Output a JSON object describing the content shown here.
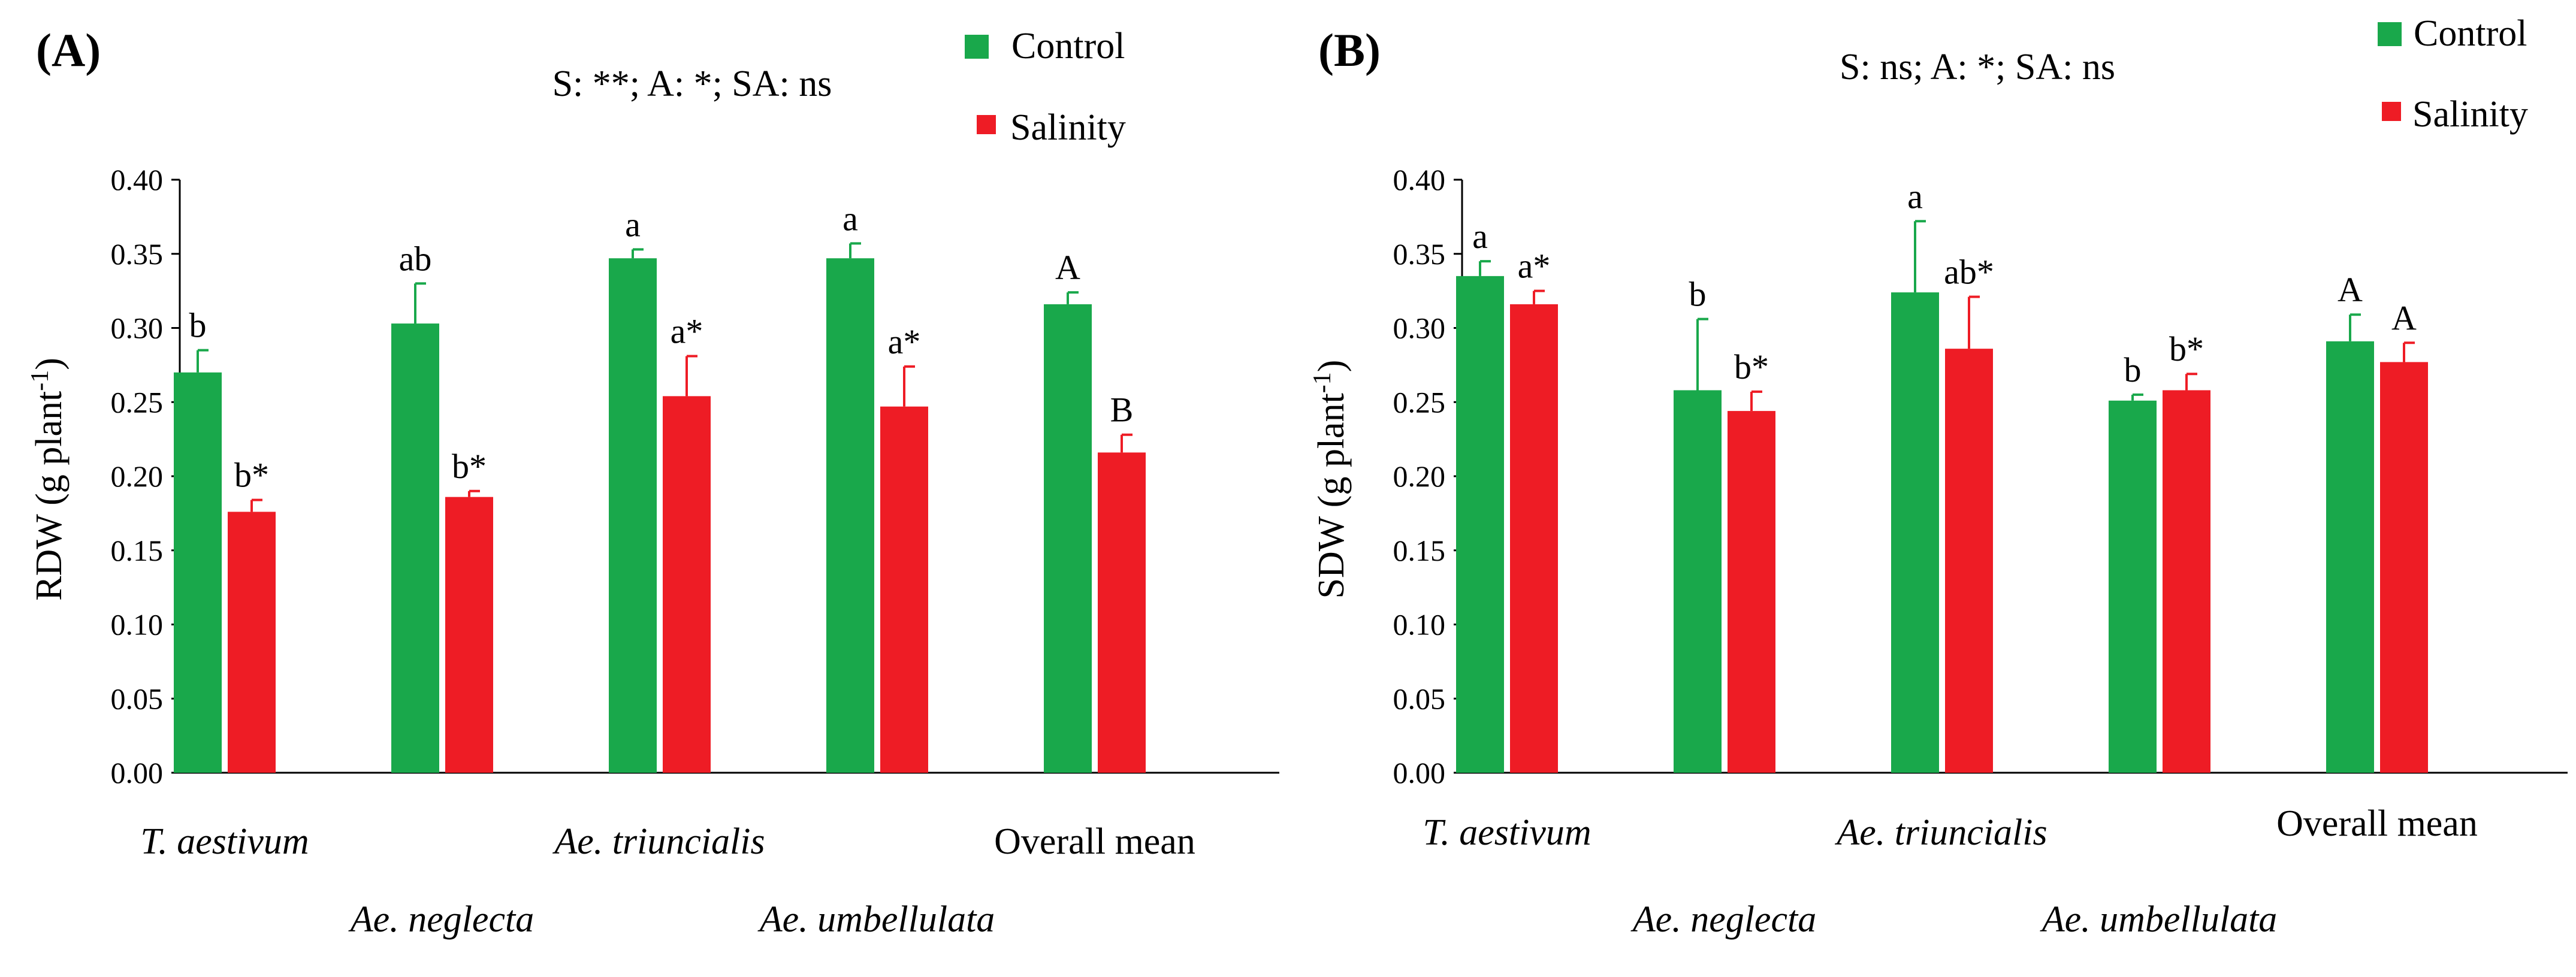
{
  "colors": {
    "control": "#19A84B",
    "salinity": "#EE1C25",
    "axis": "#000000",
    "text": "#000000"
  },
  "chart_data": [
    {
      "type": "bar",
      "panel_label": "(A)",
      "title": "S: **; A: *; SA: ns",
      "ylabel": "RDW",
      "ylabel_unit": "(g plant",
      "ylabel_exp": "-1",
      "ylabel_close": ")",
      "ylim": [
        0,
        0.4
      ],
      "yticks": [
        "0.00",
        "0.05",
        "0.10",
        "0.15",
        "0.20",
        "0.25",
        "0.30",
        "0.35",
        "0.40"
      ],
      "categories": [
        "T. aestivum",
        "Ae. neglecta",
        "Ae. triuncialis",
        "Ae. umbellulata",
        "Overall mean"
      ],
      "category_italic": [
        true,
        true,
        true,
        true,
        false
      ],
      "legend": [
        "Control",
        "Salinity"
      ],
      "series": [
        {
          "name": "Control",
          "values": [
            0.27,
            0.303,
            0.347,
            0.347,
            0.316
          ],
          "errors": [
            0.015,
            0.027,
            0.006,
            0.01,
            0.008
          ],
          "labels": [
            "b",
            "ab",
            "a",
            "a",
            "A"
          ]
        },
        {
          "name": "Salinity",
          "values": [
            0.176,
            0.186,
            0.254,
            0.247,
            0.216
          ],
          "errors": [
            0.008,
            0.004,
            0.027,
            0.027,
            0.012
          ],
          "labels": [
            "b*",
            "b*",
            "a*",
            "a*",
            "B"
          ]
        }
      ]
    },
    {
      "type": "bar",
      "panel_label": "(B)",
      "title": "S: ns; A: *; SA: ns",
      "ylabel": "SDW",
      "ylabel_unit": "(g plant",
      "ylabel_exp": "-1",
      "ylabel_close": ")",
      "ylim": [
        0,
        0.4
      ],
      "yticks": [
        "0.00",
        "0.05",
        "0.10",
        "0.15",
        "0.20",
        "0.25",
        "0.30",
        "0.35",
        "0.40"
      ],
      "categories": [
        "T. aestivum",
        "Ae. neglecta",
        "Ae. triuncialis",
        "Ae. umbellulata",
        "Overall mean"
      ],
      "category_italic": [
        true,
        true,
        true,
        true,
        false
      ],
      "legend": [
        "Control",
        "Salinity"
      ],
      "series": [
        {
          "name": "Control",
          "values": [
            0.335,
            0.258,
            0.324,
            0.251,
            0.291
          ],
          "errors": [
            0.01,
            0.048,
            0.048,
            0.004,
            0.018
          ],
          "labels": [
            "a",
            "b",
            "a",
            "b",
            "A"
          ]
        },
        {
          "name": "Salinity",
          "values": [
            0.316,
            0.244,
            0.286,
            0.258,
            0.277
          ],
          "errors": [
            0.009,
            0.013,
            0.035,
            0.011,
            0.013
          ],
          "labels": [
            "a*",
            "b*",
            "ab*",
            "b*",
            "A"
          ]
        }
      ]
    }
  ]
}
